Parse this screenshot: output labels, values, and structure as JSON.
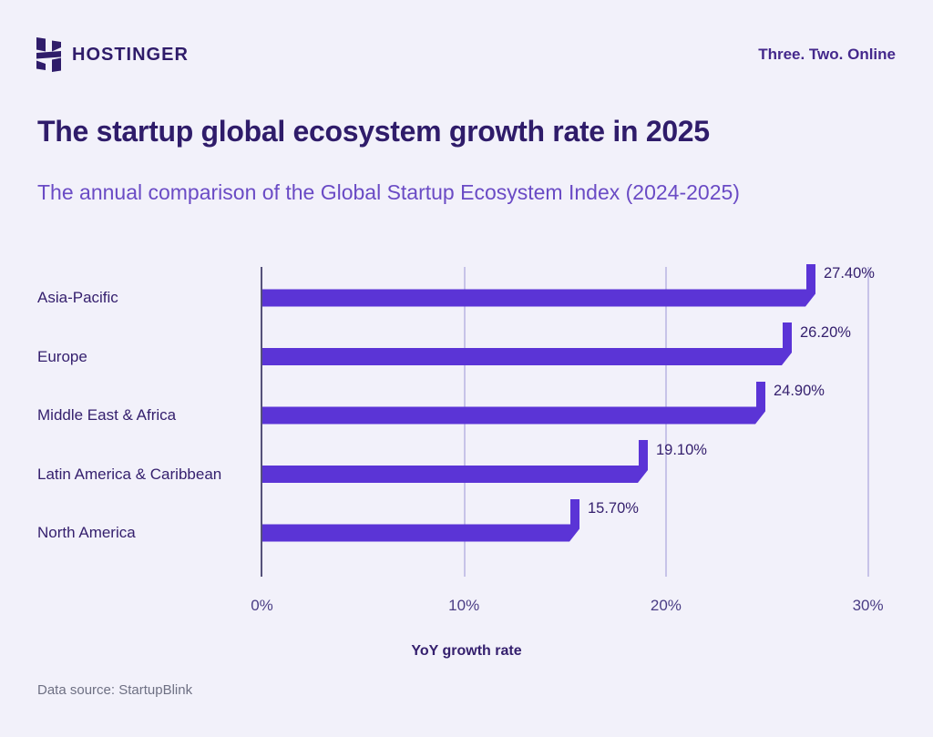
{
  "header": {
    "brand": "HOSTINGER",
    "tagline": "Three. Two. Online"
  },
  "title": "The startup global ecosystem growth rate in 2025",
  "subtitle": "The annual comparison of the Global Startup Ecosystem Index (2024-2025)",
  "footer": {
    "data_source": "Data source: StartupBlink"
  },
  "chart_data": {
    "type": "bar",
    "orientation": "horizontal",
    "title": "The startup global ecosystem growth rate in 2025",
    "categories": [
      "Asia-Pacific",
      "Europe",
      "Middle East & Africa",
      "Latin America & Caribbean",
      "North America"
    ],
    "values": [
      27.4,
      26.2,
      24.9,
      19.1,
      15.7
    ],
    "value_labels": [
      "27.40%",
      "26.20%",
      "24.90%",
      "19.10%",
      "15.70%"
    ],
    "xlabel": "YoY growth rate",
    "x_ticks": [
      "0%",
      "10%",
      "20%",
      "30%"
    ],
    "x_tick_values": [
      0,
      10,
      20,
      30
    ],
    "xlim": [
      0,
      30
    ],
    "grid": true,
    "legend": false,
    "colors": {
      "background": "#F2F1FA",
      "bar": "#5B34D6",
      "title_text": "#2F1C6A",
      "subtitle_text": "#6A4BC5",
      "category_text": "#35206E",
      "axis_line": "#55517A",
      "gridline": "#C7C3E8",
      "tick_text": "#4A3D85",
      "source_text": "#6E7083"
    }
  }
}
